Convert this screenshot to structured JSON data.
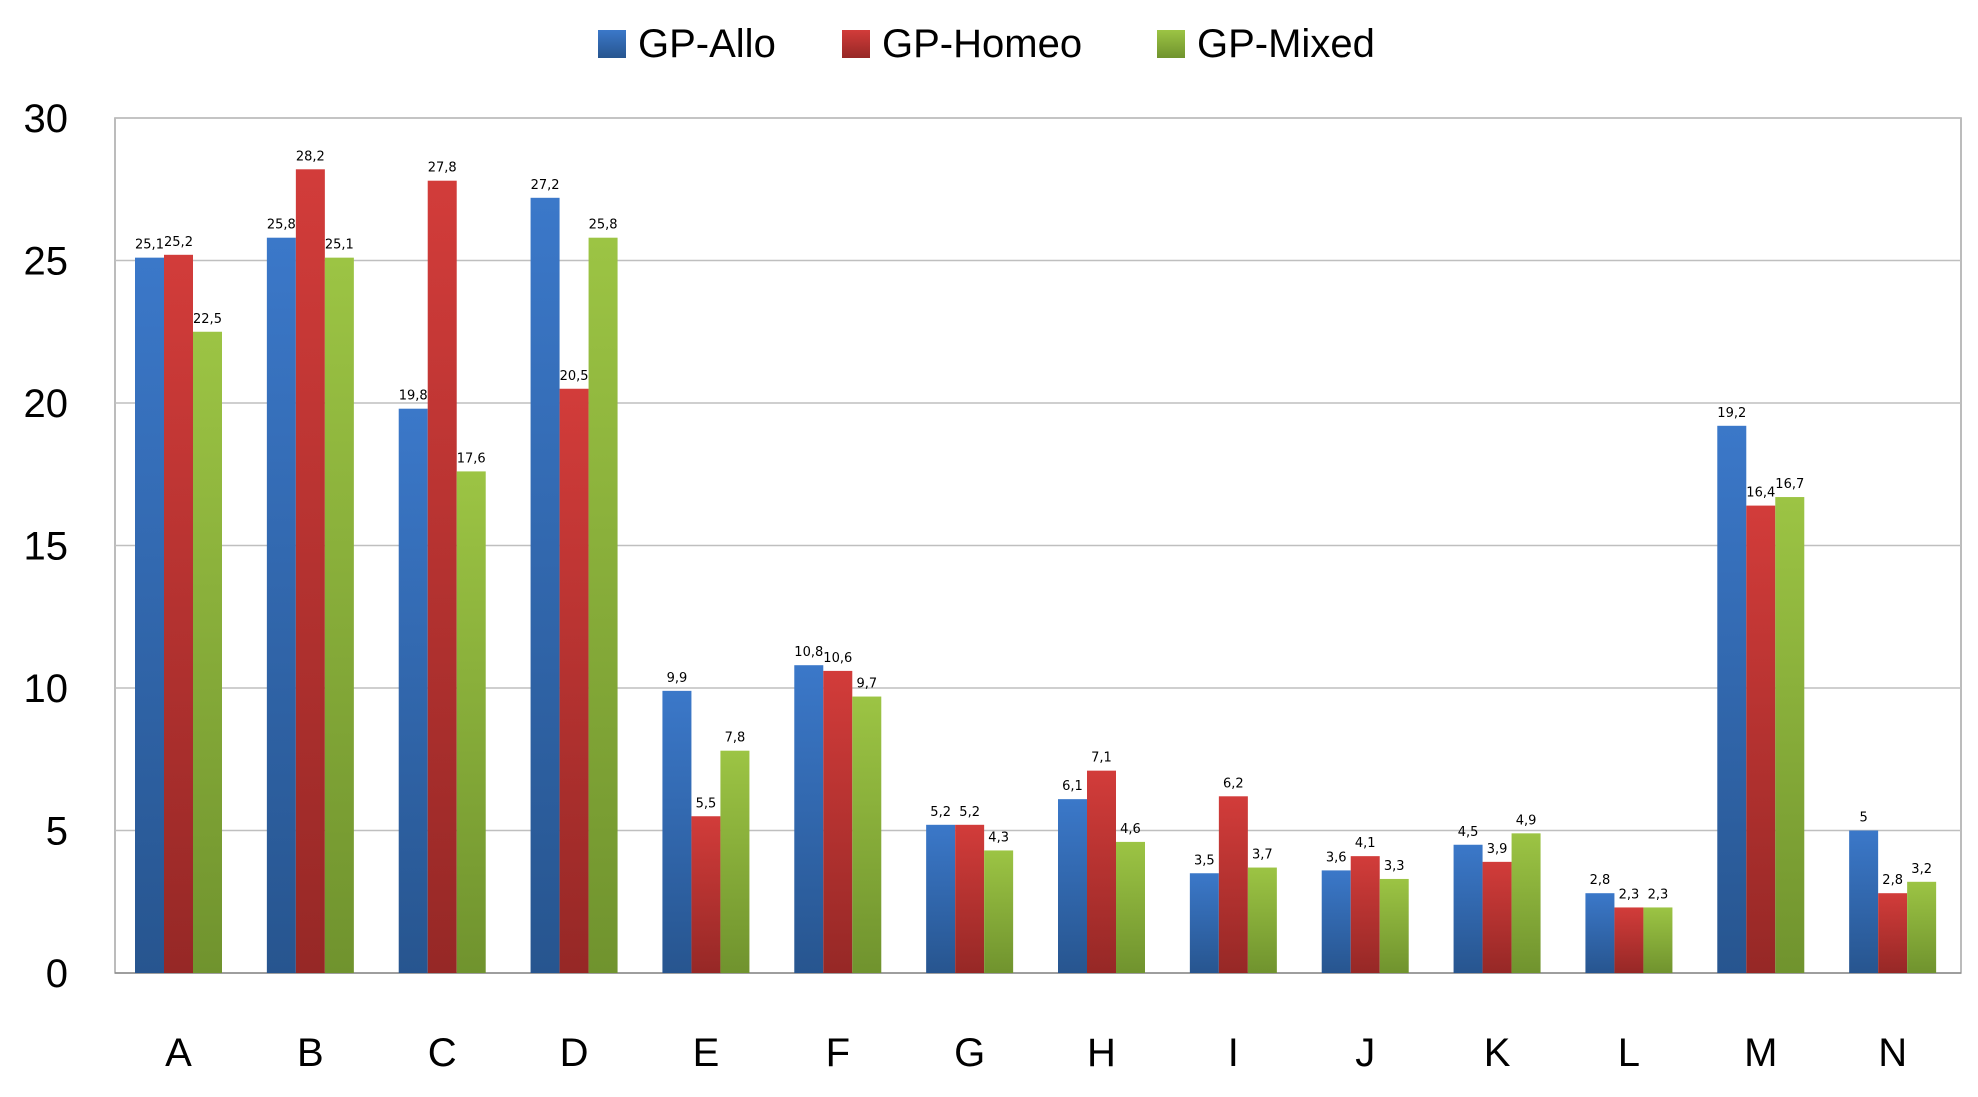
{
  "chart_data": {
    "type": "bar",
    "title": "",
    "xlabel": "",
    "ylabel": "",
    "ylim": [
      0,
      30
    ],
    "yticks": [
      0,
      5,
      10,
      15,
      20,
      25,
      30
    ],
    "yticks_text": [
      "0",
      "5",
      "10",
      "15",
      "20",
      "25",
      "30"
    ],
    "grid": true,
    "legend_position": "top-center",
    "categories": [
      "A",
      "B",
      "C",
      "D",
      "E",
      "F",
      "G",
      "H",
      "I",
      "J",
      "K",
      "L",
      "M",
      "N"
    ],
    "series": [
      {
        "name": "GP-Allo",
        "color": "#3B78C9",
        "color_dark": "#27558F",
        "values": [
          25.1,
          25.8,
          19.8,
          27.2,
          9.9,
          10.8,
          5.2,
          6.1,
          3.5,
          3.6,
          4.5,
          2.8,
          19.2,
          5
        ],
        "labels": [
          "25,1",
          "25,8",
          "19,8",
          "27,2",
          "9,9",
          "10,8",
          "5,2",
          "6,1",
          "3,5",
          "3,6",
          "4,5",
          "2,8",
          "19,2",
          "5"
        ]
      },
      {
        "name": "GP-Homeo",
        "color": "#D23C3A",
        "color_dark": "#962826",
        "values": [
          25.2,
          28.2,
          27.8,
          20.5,
          5.5,
          10.6,
          5.2,
          7.1,
          6.2,
          4.1,
          3.9,
          2.3,
          16.4,
          2.8
        ],
        "labels": [
          "25,2",
          "28,2",
          "27,8",
          "20,5",
          "5,5",
          "10,6",
          "5,2",
          "7,1",
          "6,2",
          "4,1",
          "3,9",
          "2,3",
          "16,4",
          "2,8"
        ]
      },
      {
        "name": "GP-Mixed",
        "color": "#9CC444",
        "color_dark": "#70932E",
        "values": [
          22.5,
          25.1,
          17.6,
          25.8,
          7.8,
          9.7,
          4.3,
          4.6,
          3.7,
          3.3,
          4.9,
          2.3,
          16.7,
          3.2
        ],
        "labels": [
          "22,5",
          "25,1",
          "17,6",
          "25,8",
          "7,8",
          "9,7",
          "4,3",
          "4,6",
          "3,7",
          "3,3",
          "4,9",
          "2,3",
          "16,7",
          "3,2"
        ]
      }
    ]
  }
}
